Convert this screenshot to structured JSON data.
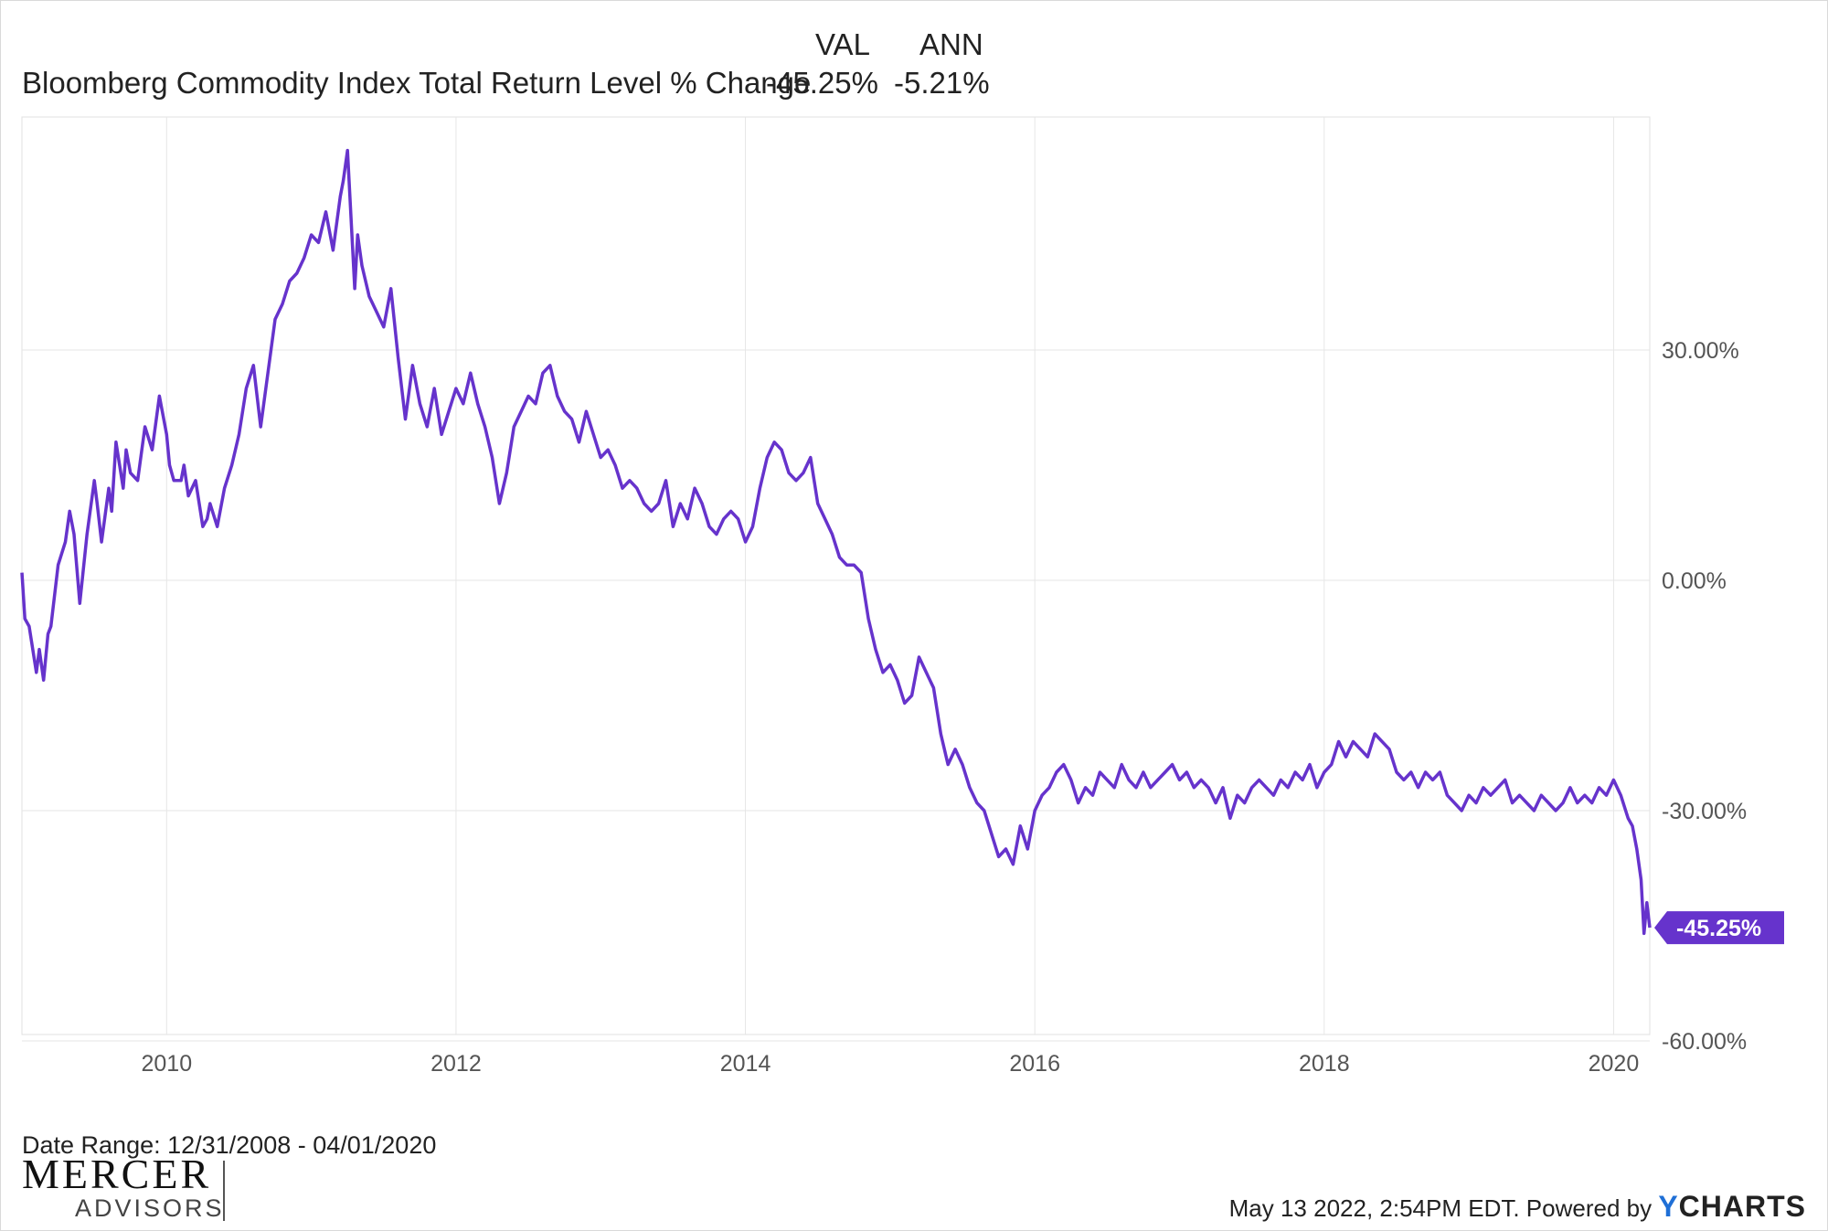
{
  "legend": {
    "col_val": "VAL",
    "col_ann": "ANN",
    "series_label": "Bloomberg Commodity Index Total Return Level % Change",
    "val": "-45.25%",
    "ann": "-5.21%"
  },
  "footer": {
    "date_range": "Date Range: 12/31/2008 - 04/01/2020",
    "timestamp": "May 13 2022, 2:54PM EDT. Powered by",
    "ycharts_y": "Y",
    "ycharts_rest": "CHARTS",
    "logo_word1": "MERCER",
    "logo_word2": "ADVISORS"
  },
  "colors": {
    "line": "#6633cc",
    "grid": "#e6e6e6",
    "text": "#222222",
    "axis_text": "#555555"
  },
  "chart_data": {
    "type": "line",
    "title": "Bloomberg Commodity Index Total Return Level % Change",
    "xlabel": "",
    "ylabel": "",
    "xlim": [
      2009.0,
      2020.25
    ],
    "ylim": [
      -60,
      62
    ],
    "y_ticks": [
      30,
      0,
      -30,
      -60
    ],
    "y_tick_labels": [
      "30.00%",
      "0.00%",
      "-30.00%",
      "-60.00%"
    ],
    "x_ticks": [
      2010,
      2012,
      2014,
      2016,
      2018,
      2020
    ],
    "x_tick_labels": [
      "2010",
      "2012",
      "2014",
      "2016",
      "2018",
      "2020"
    ],
    "grid": true,
    "end_label": "-45.25%",
    "series": [
      {
        "name": "Bloomberg Commodity Index Total Return Level % Change",
        "x": [
          2009.0,
          2009.02,
          2009.05,
          2009.1,
          2009.12,
          2009.15,
          2009.18,
          2009.2,
          2009.25,
          2009.3,
          2009.33,
          2009.36,
          2009.4,
          2009.45,
          2009.5,
          2009.52,
          2009.55,
          2009.6,
          2009.62,
          2009.65,
          2009.7,
          2009.72,
          2009.75,
          2009.8,
          2009.85,
          2009.9,
          2009.95,
          2010.0,
          2010.02,
          2010.05,
          2010.1,
          2010.12,
          2010.15,
          2010.2,
          2010.25,
          2010.28,
          2010.3,
          2010.35,
          2010.4,
          2010.45,
          2010.5,
          2010.55,
          2010.6,
          2010.65,
          2010.7,
          2010.75,
          2010.8,
          2010.85,
          2010.9,
          2010.95,
          2011.0,
          2011.05,
          2011.1,
          2011.15,
          2011.2,
          2011.22,
          2011.25,
          2011.3,
          2011.32,
          2011.35,
          2011.4,
          2011.45,
          2011.5,
          2011.55,
          2011.6,
          2011.65,
          2011.7,
          2011.75,
          2011.8,
          2011.85,
          2011.9,
          2011.95,
          2012.0,
          2012.05,
          2012.1,
          2012.15,
          2012.2,
          2012.25,
          2012.3,
          2012.35,
          2012.4,
          2012.45,
          2012.5,
          2012.55,
          2012.6,
          2012.65,
          2012.7,
          2012.75,
          2012.8,
          2012.85,
          2012.9,
          2012.95,
          2013.0,
          2013.05,
          2013.1,
          2013.15,
          2013.2,
          2013.25,
          2013.3,
          2013.35,
          2013.4,
          2013.45,
          2013.5,
          2013.55,
          2013.6,
          2013.65,
          2013.7,
          2013.75,
          2013.8,
          2013.85,
          2013.9,
          2013.95,
          2014.0,
          2014.05,
          2014.1,
          2014.15,
          2014.2,
          2014.25,
          2014.3,
          2014.35,
          2014.4,
          2014.45,
          2014.5,
          2014.55,
          2014.6,
          2014.65,
          2014.7,
          2014.75,
          2014.8,
          2014.85,
          2014.9,
          2014.95,
          2015.0,
          2015.05,
          2015.1,
          2015.15,
          2015.2,
          2015.25,
          2015.3,
          2015.35,
          2015.4,
          2015.45,
          2015.5,
          2015.55,
          2015.6,
          2015.65,
          2015.7,
          2015.75,
          2015.8,
          2015.85,
          2015.9,
          2015.95,
          2016.0,
          2016.05,
          2016.1,
          2016.15,
          2016.2,
          2016.25,
          2016.3,
          2016.35,
          2016.4,
          2016.45,
          2016.5,
          2016.55,
          2016.6,
          2016.65,
          2016.7,
          2016.75,
          2016.8,
          2016.85,
          2016.9,
          2016.95,
          2017.0,
          2017.05,
          2017.1,
          2017.15,
          2017.2,
          2017.25,
          2017.3,
          2017.35,
          2017.4,
          2017.45,
          2017.5,
          2017.55,
          2017.6,
          2017.65,
          2017.7,
          2017.75,
          2017.8,
          2017.85,
          2017.9,
          2017.95,
          2018.0,
          2018.05,
          2018.1,
          2018.15,
          2018.2,
          2018.25,
          2018.3,
          2018.35,
          2018.4,
          2018.45,
          2018.5,
          2018.55,
          2018.6,
          2018.65,
          2018.7,
          2018.75,
          2018.8,
          2018.85,
          2018.9,
          2018.95,
          2019.0,
          2019.05,
          2019.1,
          2019.15,
          2019.2,
          2019.25,
          2019.3,
          2019.35,
          2019.4,
          2019.45,
          2019.5,
          2019.55,
          2019.6,
          2019.65,
          2019.7,
          2019.75,
          2019.8,
          2019.85,
          2019.9,
          2019.95,
          2020.0,
          2020.05,
          2020.1,
          2020.13,
          2020.16,
          2020.19,
          2020.21,
          2020.23,
          2020.25
        ],
        "values": [
          1,
          -5,
          -6,
          -12,
          -9,
          -13,
          -7,
          -6,
          2,
          5,
          9,
          6,
          -3,
          6,
          13,
          10,
          5,
          12,
          9,
          18,
          12,
          17,
          14,
          13,
          20,
          17,
          24,
          19,
          15,
          13,
          13,
          15,
          11,
          13,
          7,
          8,
          10,
          7,
          12,
          15,
          19,
          25,
          28,
          20,
          27,
          34,
          36,
          39,
          40,
          42,
          45,
          44,
          48,
          43,
          50,
          52,
          56,
          38,
          45,
          41,
          37,
          35,
          33,
          38,
          29,
          21,
          28,
          23,
          20,
          25,
          19,
          22,
          25,
          23,
          27,
          23,
          20,
          16,
          10,
          14,
          20,
          22,
          24,
          23,
          27,
          28,
          24,
          22,
          21,
          18,
          22,
          19,
          16,
          17,
          15,
          12,
          13,
          12,
          10,
          9,
          10,
          13,
          7,
          10,
          8,
          12,
          10,
          7,
          6,
          8,
          9,
          8,
          5,
          7,
          12,
          16,
          18,
          17,
          14,
          13,
          14,
          16,
          10,
          8,
          6,
          3,
          2,
          2,
          1,
          -5,
          -9,
          -12,
          -11,
          -13,
          -16,
          -15,
          -10,
          -12,
          -14,
          -20,
          -24,
          -22,
          -24,
          -27,
          -29,
          -30,
          -33,
          -36,
          -35,
          -37,
          -32,
          -35,
          -30,
          -28,
          -27,
          -25,
          -24,
          -26,
          -29,
          -27,
          -28,
          -25,
          -26,
          -27,
          -24,
          -26,
          -27,
          -25,
          -27,
          -26,
          -25,
          -24,
          -26,
          -25,
          -27,
          -26,
          -27,
          -29,
          -27,
          -31,
          -28,
          -29,
          -27,
          -26,
          -27,
          -28,
          -26,
          -27,
          -25,
          -26,
          -24,
          -27,
          -25,
          -24,
          -21,
          -23,
          -21,
          -22,
          -23,
          -20,
          -21,
          -22,
          -25,
          -26,
          -25,
          -27,
          -25,
          -26,
          -25,
          -28,
          -29,
          -30,
          -28,
          -29,
          -27,
          -28,
          -27,
          -26,
          -29,
          -28,
          -29,
          -30,
          -28,
          -29,
          -30,
          -29,
          -27,
          -29,
          -28,
          -29,
          -27,
          -28,
          -26,
          -28,
          -31,
          -32,
          -35,
          -39,
          -46,
          -42,
          -45.25
        ]
      }
    ]
  }
}
